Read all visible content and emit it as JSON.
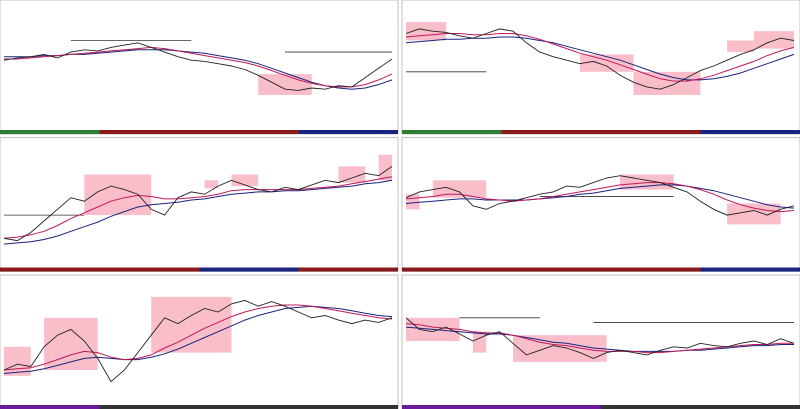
{
  "panels": [
    {
      "price": [
        55,
        57,
        58,
        60,
        57,
        62,
        64,
        63,
        66,
        68,
        70,
        66,
        62,
        58,
        55,
        54,
        52,
        50,
        47,
        42,
        36,
        30,
        29,
        31,
        30,
        33,
        32,
        40,
        48,
        56
      ],
      "ma_fast": [
        56,
        56,
        57,
        58,
        59,
        60,
        61,
        62,
        63,
        64,
        65,
        66,
        65,
        63,
        61,
        59,
        57,
        55,
        53,
        50,
        46,
        42,
        38,
        35,
        33,
        32,
        32,
        34,
        38,
        43
      ],
      "ma_slow": [
        58,
        58,
        58,
        59,
        59,
        60,
        60,
        61,
        62,
        63,
        64,
        64,
        64,
        63,
        62,
        61,
        59,
        57,
        55,
        52,
        48,
        44,
        40,
        36,
        33,
        31,
        30,
        31,
        34,
        38
      ],
      "zones": [
        [
          19,
          23,
          25,
          43
        ]
      ],
      "levels": [
        [
          5,
          14,
          72
        ],
        [
          21,
          29,
          62
        ]
      ],
      "strip": [
        "#2e7d32",
        "#8b1a1a",
        "#8b1a1a",
        "#1a237e"
      ]
    },
    {
      "price": [
        78,
        82,
        80,
        79,
        76,
        74,
        78,
        82,
        80,
        70,
        62,
        58,
        55,
        52,
        54,
        50,
        42,
        36,
        32,
        30,
        34,
        40,
        46,
        50,
        55,
        60,
        64,
        70,
        74,
        72
      ],
      "ma_fast": [
        75,
        76,
        77,
        78,
        78,
        77,
        77,
        78,
        78,
        76,
        73,
        69,
        65,
        61,
        58,
        55,
        51,
        47,
        43,
        39,
        37,
        37,
        39,
        42,
        46,
        50,
        54,
        59,
        63,
        66
      ],
      "ma_slow": [
        70,
        71,
        72,
        73,
        73,
        74,
        74,
        75,
        75,
        74,
        72,
        70,
        67,
        64,
        61,
        58,
        55,
        51,
        47,
        43,
        40,
        38,
        38,
        39,
        41,
        44,
        48,
        52,
        56,
        60
      ],
      "zones": [
        [
          0,
          3,
          72,
          88
        ],
        [
          13,
          17,
          45,
          60
        ],
        [
          17,
          22,
          25,
          45
        ],
        [
          24,
          26,
          62,
          72
        ],
        [
          26,
          29,
          65,
          80
        ]
      ],
      "levels": [
        [
          0,
          6,
          45
        ]
      ],
      "strip": [
        "#2e7d32",
        "#8b1a1a",
        "#8b1a1a",
        "#1a237e"
      ]
    },
    {
      "price": [
        20,
        18,
        25,
        35,
        45,
        55,
        52,
        60,
        65,
        62,
        58,
        45,
        40,
        55,
        60,
        58,
        65,
        70,
        66,
        62,
        60,
        64,
        62,
        66,
        70,
        68,
        72,
        76,
        74,
        82
      ],
      "ma_fast": [
        20,
        21,
        23,
        26,
        31,
        37,
        42,
        47,
        52,
        55,
        57,
        56,
        54,
        54,
        55,
        56,
        58,
        61,
        62,
        62,
        62,
        62,
        62,
        63,
        64,
        65,
        67,
        69,
        71,
        73
      ],
      "ma_slow": [
        15,
        16,
        17,
        19,
        22,
        26,
        30,
        34,
        39,
        43,
        47,
        49,
        50,
        51,
        53,
        54,
        56,
        58,
        59,
        60,
        60,
        61,
        61,
        62,
        63,
        64,
        65,
        67,
        68,
        70
      ],
      "zones": [
        [
          6,
          11,
          40,
          75
        ],
        [
          15,
          16,
          63,
          70
        ],
        [
          17,
          19,
          65,
          75
        ],
        [
          25,
          27,
          68,
          82
        ],
        [
          28,
          29,
          70,
          92
        ]
      ],
      "levels": [
        [
          0,
          6,
          40
        ]
      ],
      "strip": [
        "#8b1a1a",
        "#8b1a1a",
        "#1a237e",
        "#8b1a1a"
      ]
    },
    {
      "price": [
        55,
        60,
        62,
        64,
        60,
        48,
        45,
        50,
        52,
        55,
        58,
        60,
        65,
        64,
        68,
        72,
        74,
        72,
        70,
        68,
        64,
        60,
        52,
        45,
        40,
        42,
        44,
        40,
        45,
        48
      ],
      "ma_fast": [
        54,
        55,
        56,
        58,
        58,
        56,
        54,
        53,
        52,
        53,
        54,
        56,
        58,
        60,
        62,
        64,
        66,
        67,
        68,
        68,
        67,
        65,
        62,
        58,
        53,
        49,
        46,
        44,
        43,
        44
      ],
      "ma_slow": [
        50,
        51,
        52,
        53,
        54,
        54,
        53,
        53,
        53,
        53,
        54,
        55,
        56,
        58,
        59,
        61,
        63,
        64,
        65,
        66,
        66,
        65,
        63,
        61,
        58,
        55,
        52,
        49,
        47,
        46
      ],
      "zones": [
        [
          0,
          1,
          45,
          58
        ],
        [
          2,
          6,
          55,
          70
        ],
        [
          16,
          20,
          62,
          75
        ],
        [
          24,
          28,
          32,
          50
        ]
      ],
      "levels": [
        [
          10,
          20,
          56
        ]
      ],
      "strip": [
        "#8b1a1a",
        "#8b1a1a",
        "#8b1a1a",
        "#1a237e"
      ]
    },
    {
      "price": [
        25,
        30,
        28,
        45,
        55,
        60,
        50,
        35,
        15,
        25,
        40,
        55,
        70,
        65,
        72,
        78,
        75,
        82,
        85,
        80,
        84,
        80,
        75,
        70,
        72,
        68,
        65,
        68,
        66,
        70
      ],
      "ma_fast": [
        25,
        26,
        27,
        30,
        34,
        38,
        41,
        40,
        36,
        34,
        35,
        38,
        44,
        49,
        55,
        61,
        66,
        71,
        75,
        78,
        80,
        81,
        81,
        80,
        78,
        76,
        74,
        72,
        70,
        69
      ],
      "ma_slow": [
        22,
        23,
        24,
        26,
        29,
        32,
        35,
        36,
        35,
        34,
        34,
        36,
        39,
        43,
        48,
        53,
        58,
        63,
        68,
        72,
        75,
        78,
        79,
        80,
        79,
        78,
        76,
        74,
        72,
        71
      ],
      "zones": [
        [
          0,
          2,
          20,
          45
        ],
        [
          3,
          7,
          25,
          70
        ],
        [
          11,
          17,
          40,
          88
        ]
      ],
      "levels": [],
      "strip": [
        "#6a1b9a",
        "#333333",
        "#333333",
        "#333333"
      ]
    },
    {
      "price": [
        70,
        60,
        58,
        62,
        56,
        50,
        55,
        58,
        48,
        38,
        42,
        46,
        44,
        40,
        35,
        40,
        42,
        40,
        38,
        42,
        45,
        44,
        48,
        46,
        45,
        48,
        50,
        47,
        52,
        48
      ],
      "ma_fast": [
        65,
        64,
        62,
        61,
        60,
        58,
        57,
        57,
        55,
        52,
        49,
        47,
        46,
        44,
        42,
        41,
        41,
        41,
        40,
        40,
        41,
        42,
        43,
        44,
        45,
        46,
        47,
        47,
        48,
        48
      ],
      "ma_slow": [
        62,
        61,
        60,
        59,
        58,
        57,
        56,
        56,
        55,
        53,
        51,
        49,
        48,
        46,
        44,
        43,
        42,
        41,
        41,
        41,
        41,
        42,
        42,
        43,
        44,
        45,
        46,
        46,
        47,
        47
      ],
      "zones": [
        [
          0,
          4,
          50,
          70
        ],
        [
          5,
          6,
          40,
          58
        ],
        [
          8,
          15,
          32,
          55
        ]
      ],
      "levels": [
        [
          4,
          10,
          70
        ],
        [
          14,
          29,
          66
        ]
      ],
      "strip": [
        "#6a1b9a",
        "#6a1b9a",
        "#333333",
        "#333333"
      ]
    }
  ],
  "ylim": [
    0,
    100
  ]
}
